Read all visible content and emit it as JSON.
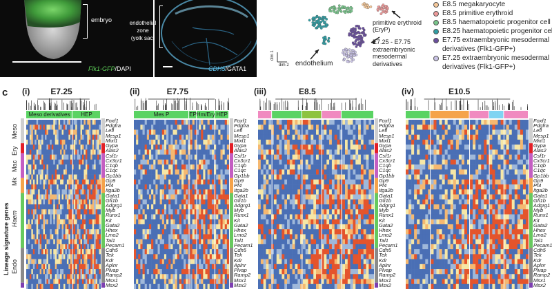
{
  "panel_b": {
    "embryo_label": "embryo",
    "yolk_label_line1": "endothelial",
    "yolk_label_line2": "zone",
    "yolk_label_line3": "(yolk sac)",
    "stain_left_green": "Flk1-GFP",
    "stain_left_rest": "/DAPI",
    "stain_right_blue": "CDH5",
    "stain_right_rest": "/GATA1"
  },
  "umap": {
    "label_endothelium": "endothelium",
    "label_erythroid_line1": "primitive erythroid",
    "label_erythroid_line2": "(EryP)",
    "label_meso_line1": "E7.25 - E7.75",
    "label_meso_line2": "extraembryonic",
    "label_meso_line3": "mesodermal derivatives",
    "axis_dim1": "dim 1",
    "axis_dim2": "dim 2"
  },
  "legend": {
    "items": [
      {
        "label": "E8.5 megakaryocyte",
        "color": "#f7c99a"
      },
      {
        "label": "E8.5 primitive erythroid",
        "color": "#ee9a9a"
      },
      {
        "label": "E8.5 haematopoietic progenitor cell",
        "color": "#77c58a"
      },
      {
        "label": "E8.25 haematopoietic progenitor cell",
        "color": "#2f9ea4"
      },
      {
        "label": "E7.75 extraembryonic mesodermal",
        "label2": "derivatives (Flk1-GFP+)",
        "color": "#6a4f9e"
      },
      {
        "label": "E7.25 extraembryonic mesodermal",
        "label2": "derivatives (Flk1-GFP+)",
        "color": "#c9c3e6"
      }
    ]
  },
  "panel_c": {
    "letter": "c",
    "y_axis_label": "Lineage signature genes",
    "groups": [
      "Meso",
      "Ery",
      "Mac",
      "Mk",
      "Haem",
      "Endo"
    ],
    "panels": [
      {
        "roman": "(i)",
        "stage": "E7.25",
        "bands": [
          "Meso derivatives",
          "HEP"
        ]
      },
      {
        "roman": "(ii)",
        "stage": "E7.75",
        "bands": [
          "Mes P",
          "EP",
          "Hm/Ery",
          "HEP"
        ]
      },
      {
        "roman": "(iii)",
        "stage": "E8.5",
        "bands": []
      },
      {
        "roman": "(iv)",
        "stage": "E10.5",
        "bands": []
      }
    ],
    "genes": [
      "Foxf1",
      "Pdgfra",
      "Lefl",
      "Mesp1",
      "Mixl1",
      "Gypa",
      "Alas2",
      "Csf1r",
      "Cx3cr1",
      "C1qb",
      "C1qc",
      "Gp1bb",
      "Gp9",
      "Pf4",
      "Itga2b",
      "Gata1",
      "Gfi1b",
      "Adgrg1",
      "Myb",
      "Runx1",
      "Kit",
      "Gata2",
      "Hhex",
      "Lmo2",
      "Tal1",
      "Pecam1",
      "Cdh5",
      "Tek",
      "Kdr",
      "Aplnr",
      "Plvap",
      "Ramp2",
      "Msx1",
      "Msx2"
    ]
  }
}
